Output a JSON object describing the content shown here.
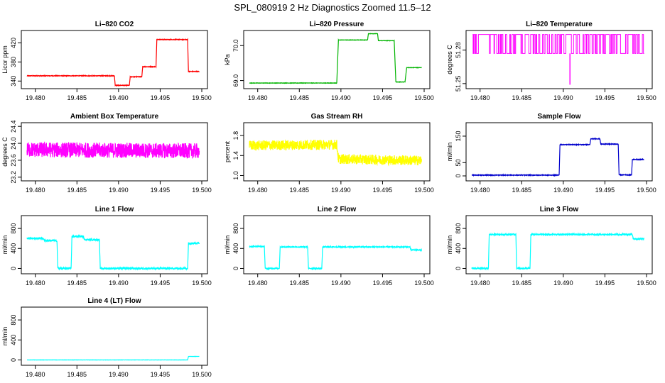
{
  "title": "SPL_080919  2 Hz Diagnostics Zoomed 11.5–12",
  "chart_data": [
    {
      "type": "line",
      "title": "Li–820 CO2",
      "ylabel": "Licor ppm",
      "color": "#ff0000",
      "xlim": [
        19.479,
        19.5
      ],
      "xticks": [
        "19.480",
        "19.485",
        "19.490",
        "19.495",
        "19.500"
      ],
      "ylim": [
        330,
        440
      ],
      "yticks": [
        "340",
        "380",
        "420"
      ],
      "ytickvals": [
        340,
        380,
        420
      ],
      "noise": 0.6,
      "x": [
        19.479,
        19.4895,
        19.4896,
        19.4913,
        19.4914,
        19.4928,
        19.4929,
        19.4945,
        19.4946,
        19.4983,
        19.4984,
        19.4997
      ],
      "y": [
        351,
        351,
        331,
        331,
        349,
        349,
        370,
        370,
        427,
        427,
        360,
        360
      ]
    },
    {
      "type": "line",
      "title": "Li–820 Pressure",
      "ylabel": "kPa",
      "color": "#00b400",
      "xlim": [
        19.479,
        19.5
      ],
      "xticks": [
        "19.480",
        "19.485",
        "19.490",
        "19.495",
        "19.500"
      ],
      "ylim": [
        68.85,
        70.35
      ],
      "yticks": [
        "69.0",
        "70.0"
      ],
      "ytickvals": [
        69.0,
        70.0
      ],
      "noise": 0.005,
      "x": [
        19.479,
        19.4895,
        19.4897,
        19.4932,
        19.4933,
        19.4944,
        19.4945,
        19.4964,
        19.4966,
        19.4977,
        19.4979,
        19.4997
      ],
      "y": [
        68.93,
        68.93,
        70.16,
        70.16,
        70.34,
        70.34,
        70.14,
        70.14,
        68.96,
        68.96,
        69.37,
        69.37
      ]
    },
    {
      "type": "line",
      "title": "Li–820 Temperature",
      "ylabel": "degrees C",
      "color": "#ff00ff",
      "xlim": [
        19.479,
        19.5
      ],
      "xticks": [
        "19.480",
        "19.485",
        "19.490",
        "19.495",
        "19.500"
      ],
      "ylim": [
        51.248,
        51.295
      ],
      "yticks": [
        "51.25",
        "51.28"
      ],
      "ytickvals": [
        51.25,
        51.28
      ],
      "noise": 0,
      "x": [],
      "y": [],
      "levels": [
        51.277,
        51.294
      ],
      "spike": {
        "x": 19.4908,
        "y": 51.249
      }
    },
    {
      "type": "line",
      "title": "Ambient Box Temperature",
      "ylabel": "degrees C",
      "color": "#ff00ff",
      "xlim": [
        19.479,
        19.5
      ],
      "xticks": [
        "19.480",
        "19.485",
        "19.490",
        "19.495",
        "19.500"
      ],
      "ylim": [
        23.18,
        24.42
      ],
      "yticks": [
        "23.2",
        "23.6",
        "24.0",
        "24.4"
      ],
      "ytickvals": [
        23.2,
        23.6,
        24.0,
        24.4
      ],
      "noise": 0.18,
      "x": [
        19.479,
        19.4997
      ],
      "y": [
        23.85,
        23.82
      ]
    },
    {
      "type": "line",
      "title": "Gas Stream RH",
      "ylabel": "percent",
      "color": "#ffff00",
      "xlim": [
        19.479,
        19.5
      ],
      "xticks": [
        "19.480",
        "19.485",
        "19.490",
        "19.495",
        "19.500"
      ],
      "ylim": [
        0.95,
        2.0
      ],
      "yticks": [
        "1.0",
        "1.4",
        "1.8"
      ],
      "ytickvals": [
        1.0,
        1.4,
        1.8
      ],
      "noise": 0.1,
      "x": [
        19.479,
        19.4895,
        19.4897,
        19.4997
      ],
      "y": [
        1.6,
        1.62,
        1.33,
        1.3
      ]
    },
    {
      "type": "line",
      "title": "Sample Flow",
      "ylabel": "ml/min",
      "color": "#0000cc",
      "xlim": [
        19.479,
        19.5
      ],
      "xticks": [
        "19.480",
        "19.485",
        "19.490",
        "19.495",
        "19.500"
      ],
      "ylim": [
        -8,
        190
      ],
      "yticks": [
        "0",
        "50",
        "150"
      ],
      "ytickvals": [
        0,
        50,
        150
      ],
      "noise": 1.2,
      "x": [
        19.479,
        19.4895,
        19.4896,
        19.4932,
        19.4933,
        19.4944,
        19.4945,
        19.4966,
        19.4967,
        19.4982,
        19.4983,
        19.4997
      ],
      "y": [
        3,
        3,
        118,
        118,
        140,
        140,
        120,
        120,
        4,
        4,
        62,
        62
      ]
    },
    {
      "type": "line",
      "title": "Line 1 Flow",
      "ylabel": "ml/min",
      "color": "#00ffff",
      "xlim": [
        19.479,
        19.5
      ],
      "xticks": [
        "19.480",
        "19.485",
        "19.490",
        "19.495",
        "19.500"
      ],
      "ylim": [
        -50,
        1000
      ],
      "yticks": [
        "0",
        "400",
        "800"
      ],
      "ytickvals": [
        0,
        400,
        800
      ],
      "noise": 18,
      "x": [
        19.479,
        19.481,
        19.4811,
        19.4826,
        19.4827,
        19.4843,
        19.4844,
        19.4858,
        19.4859,
        19.4877,
        19.4878,
        19.4983,
        19.4984,
        19.4997
      ],
      "y": [
        600,
        600,
        555,
        555,
        0,
        0,
        640,
        640,
        575,
        575,
        0,
        0,
        505,
        505
      ]
    },
    {
      "type": "line",
      "title": "Line 2 Flow",
      "ylabel": "ml/min",
      "color": "#00ffff",
      "xlim": [
        19.479,
        19.5
      ],
      "xticks": [
        "19.480",
        "19.485",
        "19.490",
        "19.495",
        "19.500"
      ],
      "ylim": [
        -50,
        1000
      ],
      "yticks": [
        "0",
        "400",
        "800"
      ],
      "ytickvals": [
        0,
        400,
        800
      ],
      "noise": 10,
      "x": [
        19.479,
        19.4808,
        19.4809,
        19.4826,
        19.4827,
        19.486,
        19.4861,
        19.4877,
        19.4878,
        19.4983,
        19.4984,
        19.4997
      ],
      "y": [
        440,
        440,
        0,
        0,
        430,
        430,
        0,
        0,
        430,
        430,
        370,
        370
      ]
    },
    {
      "type": "line",
      "title": "Line 3 Flow",
      "ylabel": "ml/min",
      "color": "#00ffff",
      "xlim": [
        19.479,
        19.5
      ],
      "xticks": [
        "19.480",
        "19.485",
        "19.490",
        "19.495",
        "19.500"
      ],
      "ylim": [
        -50,
        1000
      ],
      "yticks": [
        "0",
        "400",
        "800"
      ],
      "ytickvals": [
        0,
        400,
        800
      ],
      "noise": 14,
      "x": [
        19.479,
        19.481,
        19.4811,
        19.4843,
        19.4844,
        19.486,
        19.4861,
        19.4983,
        19.4984,
        19.4997
      ],
      "y": [
        0,
        0,
        680,
        680,
        0,
        0,
        680,
        680,
        590,
        590
      ]
    },
    {
      "type": "line",
      "title": "Line 4 (LT) Flow",
      "ylabel": "ml/min",
      "color": "#00ffff",
      "xlim": [
        19.479,
        19.5
      ],
      "xticks": [
        "19.480",
        "19.485",
        "19.490",
        "19.495",
        "19.500"
      ],
      "ylim": [
        -50,
        1000
      ],
      "yticks": [
        "0",
        "400",
        "800"
      ],
      "ytickvals": [
        0,
        400,
        800
      ],
      "noise": 2,
      "x": [
        19.479,
        19.4983,
        19.4984,
        19.4997
      ],
      "y": [
        0,
        0,
        70,
        70
      ]
    }
  ]
}
